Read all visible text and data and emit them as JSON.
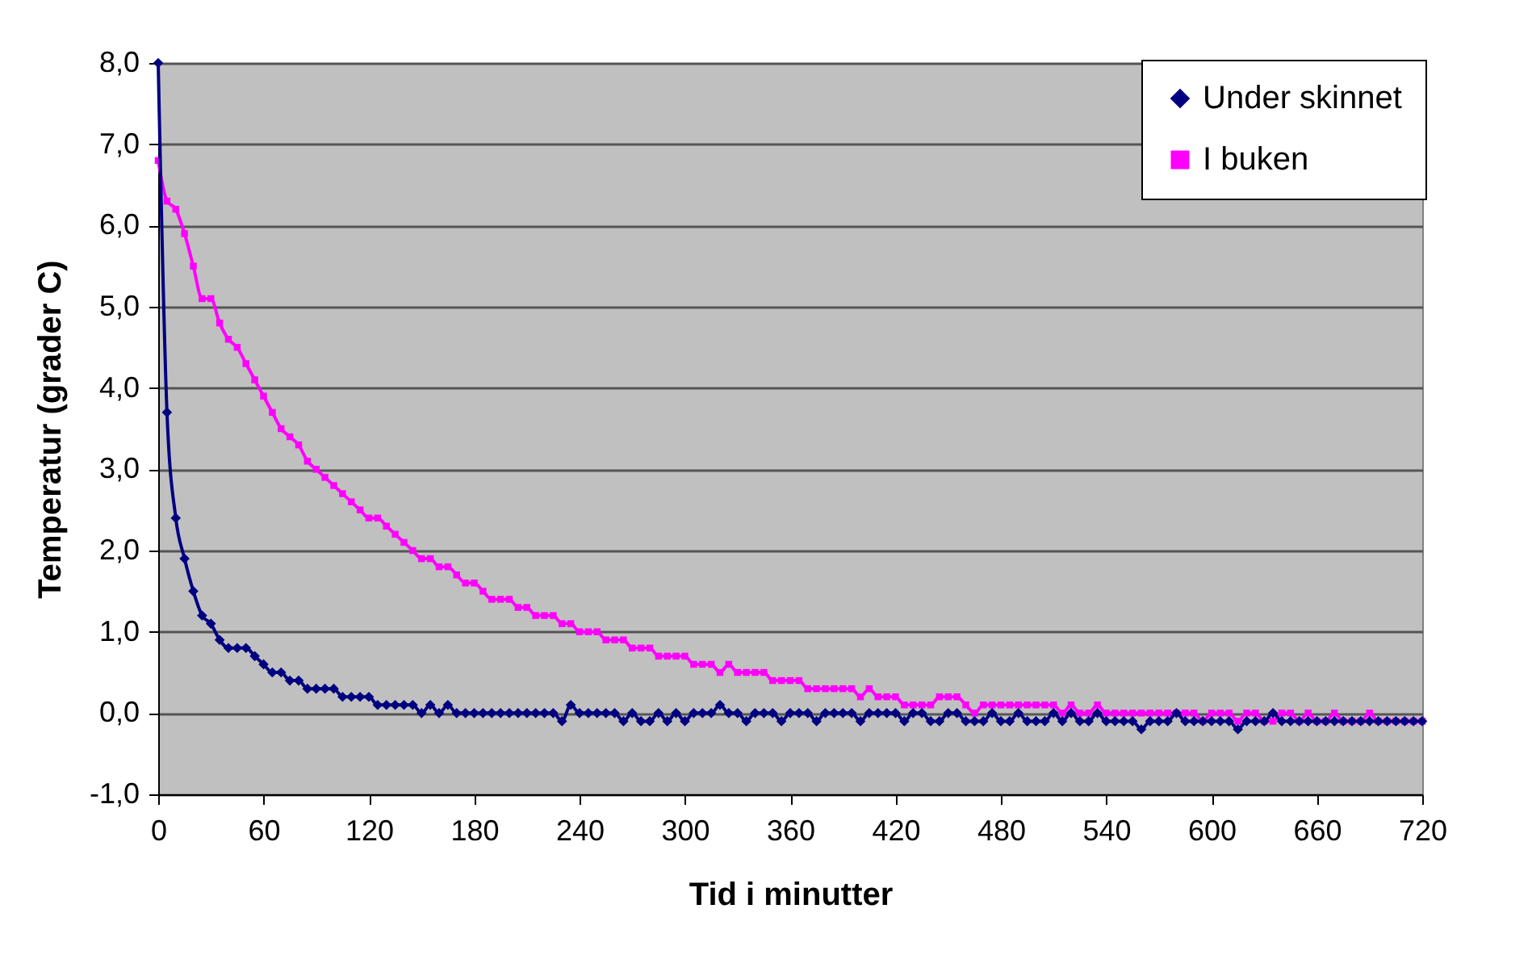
{
  "chart_data": {
    "type": "line",
    "xlabel": "Tid i minutter",
    "ylabel": "Temperatur (grader C)",
    "x": [
      0,
      5,
      10,
      15,
      20,
      25,
      30,
      35,
      40,
      45,
      50,
      55,
      60,
      65,
      70,
      75,
      80,
      85,
      90,
      95,
      100,
      105,
      110,
      115,
      120,
      125,
      130,
      135,
      140,
      145,
      150,
      155,
      160,
      165,
      170,
      175,
      180,
      185,
      190,
      195,
      200,
      205,
      210,
      215,
      220,
      225,
      230,
      235,
      240,
      245,
      250,
      255,
      260,
      265,
      270,
      275,
      280,
      285,
      290,
      295,
      300,
      305,
      310,
      315,
      320,
      325,
      330,
      335,
      340,
      345,
      350,
      355,
      360,
      365,
      370,
      375,
      380,
      385,
      390,
      395,
      400,
      405,
      410,
      415,
      420,
      425,
      430,
      435,
      440,
      445,
      450,
      455,
      460,
      465,
      470,
      475,
      480,
      485,
      490,
      495,
      500,
      505,
      510,
      515,
      520,
      525,
      530,
      535,
      540,
      545,
      550,
      555,
      560,
      565,
      570,
      575,
      580,
      585,
      590,
      595,
      600,
      605,
      610,
      615,
      620,
      625,
      630,
      635,
      640,
      645,
      650,
      655,
      660,
      665,
      670,
      675,
      680,
      685,
      690,
      695,
      700,
      705,
      710,
      715,
      720
    ],
    "series": [
      {
        "name": "Under skinnet",
        "color": "#000080",
        "marker": "diamond",
        "values": [
          8.0,
          3.7,
          2.4,
          1.9,
          1.5,
          1.2,
          1.1,
          0.9,
          0.8,
          0.8,
          0.8,
          0.7,
          0.6,
          0.5,
          0.5,
          0.4,
          0.4,
          0.3,
          0.3,
          0.3,
          0.3,
          0.2,
          0.2,
          0.2,
          0.2,
          0.1,
          0.1,
          0.1,
          0.1,
          0.1,
          0.0,
          0.1,
          0.0,
          0.1,
          0.0,
          0.0,
          0.0,
          0.0,
          0.0,
          0.0,
          0.0,
          0.0,
          0.0,
          0.0,
          0.0,
          0.0,
          -0.1,
          0.1,
          0.0,
          0.0,
          0.0,
          0.0,
          0.0,
          -0.1,
          0.0,
          -0.1,
          -0.1,
          0.0,
          -0.1,
          0.0,
          -0.1,
          0.0,
          0.0,
          0.0,
          0.1,
          0.0,
          0.0,
          -0.1,
          0.0,
          0.0,
          0.0,
          -0.1,
          0.0,
          0.0,
          0.0,
          -0.1,
          0.0,
          0.0,
          0.0,
          0.0,
          -0.1,
          0.0,
          0.0,
          0.0,
          0.0,
          -0.1,
          0.0,
          0.0,
          -0.1,
          -0.1,
          0.0,
          0.0,
          -0.1,
          -0.1,
          -0.1,
          0.0,
          -0.1,
          -0.1,
          0.0,
          -0.1,
          -0.1,
          -0.1,
          0.0,
          -0.1,
          0.0,
          -0.1,
          -0.1,
          0.0,
          -0.1,
          -0.1,
          -0.1,
          -0.1,
          -0.2,
          -0.1,
          -0.1,
          -0.1,
          0.0,
          -0.1,
          -0.1,
          -0.1,
          -0.1,
          -0.1,
          -0.1,
          -0.2,
          -0.1,
          -0.1,
          -0.1,
          0.0,
          -0.1,
          -0.1,
          -0.1,
          -0.1,
          -0.1,
          -0.1,
          -0.1,
          -0.1,
          -0.1,
          -0.1,
          -0.1,
          -0.1,
          -0.1,
          -0.1,
          -0.1,
          -0.1,
          -0.1
        ]
      },
      {
        "name": "I buken",
        "color": "#ff00ff",
        "marker": "square",
        "values": [
          6.8,
          6.3,
          6.2,
          5.9,
          5.5,
          5.1,
          5.1,
          4.8,
          4.6,
          4.5,
          4.3,
          4.1,
          3.9,
          3.7,
          3.5,
          3.4,
          3.3,
          3.1,
          3.0,
          2.9,
          2.8,
          2.7,
          2.6,
          2.5,
          2.4,
          2.4,
          2.3,
          2.2,
          2.1,
          2.0,
          1.9,
          1.9,
          1.8,
          1.8,
          1.7,
          1.6,
          1.6,
          1.5,
          1.4,
          1.4,
          1.4,
          1.3,
          1.3,
          1.2,
          1.2,
          1.2,
          1.1,
          1.1,
          1.0,
          1.0,
          1.0,
          0.9,
          0.9,
          0.9,
          0.8,
          0.8,
          0.8,
          0.7,
          0.7,
          0.7,
          0.7,
          0.6,
          0.6,
          0.6,
          0.5,
          0.6,
          0.5,
          0.5,
          0.5,
          0.5,
          0.4,
          0.4,
          0.4,
          0.4,
          0.3,
          0.3,
          0.3,
          0.3,
          0.3,
          0.3,
          0.2,
          0.3,
          0.2,
          0.2,
          0.2,
          0.1,
          0.1,
          0.1,
          0.1,
          0.2,
          0.2,
          0.2,
          0.1,
          0.0,
          0.1,
          0.1,
          0.1,
          0.1,
          0.1,
          0.1,
          0.1,
          0.1,
          0.1,
          0.0,
          0.1,
          0.0,
          0.0,
          0.1,
          0.0,
          0.0,
          0.0,
          0.0,
          0.0,
          0.0,
          0.0,
          0.0,
          0.0,
          0.0,
          0.0,
          -0.1,
          0.0,
          0.0,
          0.0,
          -0.1,
          0.0,
          0.0,
          -0.1,
          -0.1,
          0.0,
          0.0,
          -0.1,
          0.0,
          -0.1,
          -0.1,
          0.0,
          -0.1,
          -0.1,
          -0.1,
          0.0,
          -0.1,
          -0.1,
          -0.1,
          -0.1,
          -0.1,
          -0.1
        ]
      }
    ],
    "xlim": [
      0,
      720
    ],
    "xticks": [
      0,
      60,
      120,
      180,
      240,
      300,
      360,
      420,
      480,
      540,
      600,
      660,
      720
    ],
    "ylim": [
      -1,
      8
    ],
    "yticks": [
      {
        "value": -1,
        "label": "-1,0"
      },
      {
        "value": 0,
        "label": "0,0"
      },
      {
        "value": 1,
        "label": "1,0"
      },
      {
        "value": 2,
        "label": "2,0"
      },
      {
        "value": 3,
        "label": "3,0"
      },
      {
        "value": 4,
        "label": "4,0"
      },
      {
        "value": 5,
        "label": "5,0"
      },
      {
        "value": 6,
        "label": "6,0"
      },
      {
        "value": 7,
        "label": "7,0"
      },
      {
        "value": 8,
        "label": "8,0"
      }
    ],
    "grid": "y",
    "legend": "top right",
    "line_style": "solid"
  }
}
